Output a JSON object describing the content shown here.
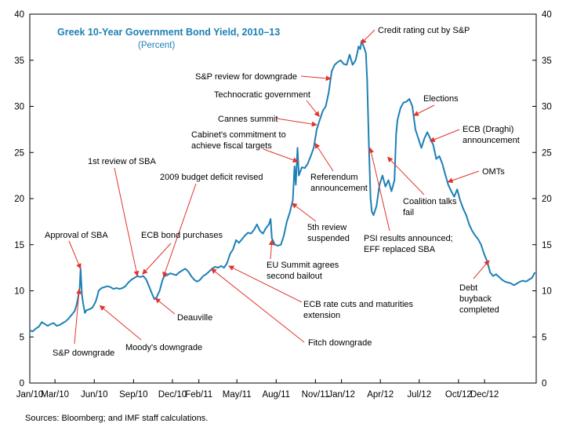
{
  "chart_data": {
    "type": "line",
    "title": "Greek 10-Year Government Bond Yield, 2010–13",
    "subtitle": "(Percent)",
    "source": "Sources: Bloomberg; and IMF staff calculations.",
    "colors": {
      "line": "#1d80b5",
      "title": "#1d80b5",
      "arrow": "#e0342c",
      "axis": "#000000"
    },
    "ylim": [
      0,
      40
    ],
    "y_ticks": [
      "0",
      "5",
      "10",
      "15",
      "20",
      "25",
      "30",
      "35",
      "40"
    ],
    "xlim": [
      "2010-01-01",
      "2013-04-01"
    ],
    "x_ticks": [
      {
        "label": "Jan/10",
        "date": "2010-01-01"
      },
      {
        "label": "Mar/10",
        "date": "2010-03-01"
      },
      {
        "label": "Jun/10",
        "date": "2010-06-01"
      },
      {
        "label": "Sep/10",
        "date": "2010-09-01"
      },
      {
        "label": "Dec/10",
        "date": "2010-12-01"
      },
      {
        "label": "Feb/11",
        "date": "2011-02-01"
      },
      {
        "label": "May/11",
        "date": "2011-05-01"
      },
      {
        "label": "Aug/11",
        "date": "2011-08-01"
      },
      {
        "label": "Nov/11",
        "date": "2011-11-01"
      },
      {
        "label": "Jan/12",
        "date": "2012-01-01"
      },
      {
        "label": "Apr/12",
        "date": "2012-04-01"
      },
      {
        "label": "Jul/12",
        "date": "2012-07-01"
      },
      {
        "label": "Oct/12",
        "date": "2012-10-01"
      },
      {
        "label": "Dec/12",
        "date": "2012-12-01"
      }
    ],
    "grid": false,
    "series": [
      {
        "points": [
          [
            "2010-01-01",
            5.7
          ],
          [
            "2010-01-08",
            5.6
          ],
          [
            "2010-01-15",
            5.9
          ],
          [
            "2010-01-22",
            6.1
          ],
          [
            "2010-01-29",
            6.6
          ],
          [
            "2010-02-05",
            6.4
          ],
          [
            "2010-02-12",
            6.2
          ],
          [
            "2010-02-19",
            6.4
          ],
          [
            "2010-02-26",
            6.5
          ],
          [
            "2010-03-05",
            6.2
          ],
          [
            "2010-03-12",
            6.3
          ],
          [
            "2010-03-19",
            6.5
          ],
          [
            "2010-03-26",
            6.7
          ],
          [
            "2010-04-02",
            7.0
          ],
          [
            "2010-04-09",
            7.4
          ],
          [
            "2010-04-16",
            7.8
          ],
          [
            "2010-04-20",
            8.4
          ],
          [
            "2010-04-23",
            9.0
          ],
          [
            "2010-04-26",
            9.8
          ],
          [
            "2010-04-28",
            10.4
          ],
          [
            "2010-04-30",
            12.4
          ],
          [
            "2010-05-03",
            9.6
          ],
          [
            "2010-05-06",
            8.6
          ],
          [
            "2010-05-10",
            7.6
          ],
          [
            "2010-05-14",
            7.9
          ],
          [
            "2010-05-21",
            8.0
          ],
          [
            "2010-05-28",
            8.2
          ],
          [
            "2010-06-04",
            8.8
          ],
          [
            "2010-06-08",
            9.4
          ],
          [
            "2010-06-11",
            10.0
          ],
          [
            "2010-06-18",
            10.3
          ],
          [
            "2010-06-25",
            10.4
          ],
          [
            "2010-07-02",
            10.5
          ],
          [
            "2010-07-09",
            10.4
          ],
          [
            "2010-07-16",
            10.2
          ],
          [
            "2010-07-23",
            10.3
          ],
          [
            "2010-07-30",
            10.2
          ],
          [
            "2010-08-06",
            10.3
          ],
          [
            "2010-08-13",
            10.5
          ],
          [
            "2010-08-20",
            10.9
          ],
          [
            "2010-08-27",
            11.2
          ],
          [
            "2010-09-03",
            11.4
          ],
          [
            "2010-09-10",
            11.6
          ],
          [
            "2010-09-17",
            11.5
          ],
          [
            "2010-09-24",
            11.6
          ],
          [
            "2010-10-01",
            11.2
          ],
          [
            "2010-10-08",
            10.4
          ],
          [
            "2010-10-15",
            9.6
          ],
          [
            "2010-10-20",
            9.1
          ],
          [
            "2010-10-25",
            9.3
          ],
          [
            "2010-11-01",
            10.0
          ],
          [
            "2010-11-08",
            11.2
          ],
          [
            "2010-11-12",
            11.6
          ],
          [
            "2010-11-19",
            11.7
          ],
          [
            "2010-11-26",
            11.9
          ],
          [
            "2010-12-03",
            11.8
          ],
          [
            "2010-12-10",
            11.7
          ],
          [
            "2010-12-17",
            12.0
          ],
          [
            "2010-12-24",
            12.2
          ],
          [
            "2010-12-31",
            12.4
          ],
          [
            "2011-01-07",
            12.1
          ],
          [
            "2011-01-14",
            11.6
          ],
          [
            "2011-01-21",
            11.2
          ],
          [
            "2011-01-28",
            11.0
          ],
          [
            "2011-02-04",
            11.2
          ],
          [
            "2011-02-11",
            11.6
          ],
          [
            "2011-02-18",
            11.8
          ],
          [
            "2011-02-25",
            12.1
          ],
          [
            "2011-03-04",
            12.4
          ],
          [
            "2011-03-11",
            12.6
          ],
          [
            "2011-03-18",
            12.5
          ],
          [
            "2011-03-25",
            12.7
          ],
          [
            "2011-04-01",
            12.5
          ],
          [
            "2011-04-08",
            13.0
          ],
          [
            "2011-04-15",
            14.0
          ],
          [
            "2011-04-22",
            14.5
          ],
          [
            "2011-04-29",
            15.5
          ],
          [
            "2011-05-06",
            15.2
          ],
          [
            "2011-05-13",
            15.6
          ],
          [
            "2011-05-20",
            16.0
          ],
          [
            "2011-05-27",
            16.3
          ],
          [
            "2011-06-03",
            16.2
          ],
          [
            "2011-06-10",
            16.6
          ],
          [
            "2011-06-17",
            17.2
          ],
          [
            "2011-06-24",
            16.5
          ],
          [
            "2011-07-01",
            16.2
          ],
          [
            "2011-07-08",
            16.8
          ],
          [
            "2011-07-15",
            17.2
          ],
          [
            "2011-07-19",
            17.8
          ],
          [
            "2011-07-22",
            15.7
          ],
          [
            "2011-07-29",
            15.0
          ],
          [
            "2011-08-05",
            14.9
          ],
          [
            "2011-08-12",
            15.0
          ],
          [
            "2011-08-19",
            16.0
          ],
          [
            "2011-08-26",
            17.5
          ],
          [
            "2011-09-02",
            18.5
          ],
          [
            "2011-09-09",
            19.8
          ],
          [
            "2011-09-13",
            23.5
          ],
          [
            "2011-09-16",
            21.5
          ],
          [
            "2011-09-20",
            25.5
          ],
          [
            "2011-09-23",
            22.5
          ],
          [
            "2011-09-30",
            23.4
          ],
          [
            "2011-10-07",
            23.3
          ],
          [
            "2011-10-14",
            23.8
          ],
          [
            "2011-10-21",
            24.6
          ],
          [
            "2011-10-28",
            25.5
          ],
          [
            "2011-11-04",
            27.5
          ],
          [
            "2011-11-11",
            28.5
          ],
          [
            "2011-11-18",
            29.5
          ],
          [
            "2011-11-25",
            30.0
          ],
          [
            "2011-12-02",
            31.5
          ],
          [
            "2011-12-09",
            33.8
          ],
          [
            "2011-12-16",
            34.5
          ],
          [
            "2011-12-23",
            34.8
          ],
          [
            "2011-12-30",
            35.0
          ],
          [
            "2012-01-06",
            34.6
          ],
          [
            "2012-01-13",
            34.5
          ],
          [
            "2012-01-20",
            35.6
          ],
          [
            "2012-01-27",
            34.5
          ],
          [
            "2012-02-03",
            35.0
          ],
          [
            "2012-02-08",
            36.0
          ],
          [
            "2012-02-10",
            36.5
          ],
          [
            "2012-02-14",
            36.2
          ],
          [
            "2012-02-17",
            37.1
          ],
          [
            "2012-02-22",
            36.5
          ],
          [
            "2012-02-27",
            35.8
          ],
          [
            "2012-03-01",
            33.0
          ],
          [
            "2012-03-05",
            26.0
          ],
          [
            "2012-03-09",
            20.0
          ],
          [
            "2012-03-12",
            18.6
          ],
          [
            "2012-03-16",
            18.2
          ],
          [
            "2012-03-23",
            19.2
          ],
          [
            "2012-03-30",
            21.5
          ],
          [
            "2012-04-06",
            22.5
          ],
          [
            "2012-04-13",
            21.3
          ],
          [
            "2012-04-20",
            22.0
          ],
          [
            "2012-04-27",
            20.8
          ],
          [
            "2012-05-04",
            22.0
          ],
          [
            "2012-05-08",
            27.0
          ],
          [
            "2012-05-11",
            28.5
          ],
          [
            "2012-05-18",
            29.8
          ],
          [
            "2012-05-25",
            30.4
          ],
          [
            "2012-06-01",
            30.5
          ],
          [
            "2012-06-08",
            30.8
          ],
          [
            "2012-06-15",
            30.0
          ],
          [
            "2012-06-22",
            27.5
          ],
          [
            "2012-06-29",
            26.5
          ],
          [
            "2012-07-06",
            25.5
          ],
          [
            "2012-07-13",
            26.5
          ],
          [
            "2012-07-20",
            27.2
          ],
          [
            "2012-07-27",
            26.5
          ],
          [
            "2012-08-03",
            25.8
          ],
          [
            "2012-08-10",
            24.3
          ],
          [
            "2012-08-17",
            24.6
          ],
          [
            "2012-08-24",
            23.8
          ],
          [
            "2012-08-31",
            22.6
          ],
          [
            "2012-09-07",
            21.5
          ],
          [
            "2012-09-14",
            20.8
          ],
          [
            "2012-09-21",
            20.2
          ],
          [
            "2012-09-28",
            21.0
          ],
          [
            "2012-10-05",
            19.8
          ],
          [
            "2012-10-12",
            18.9
          ],
          [
            "2012-10-19",
            18.2
          ],
          [
            "2012-10-26",
            17.2
          ],
          [
            "2012-11-02",
            16.5
          ],
          [
            "2012-11-09",
            16.0
          ],
          [
            "2012-11-16",
            15.6
          ],
          [
            "2012-11-23",
            15.0
          ],
          [
            "2012-11-30",
            14.0
          ],
          [
            "2012-12-07",
            13.2
          ],
          [
            "2012-12-14",
            12.0
          ],
          [
            "2012-12-21",
            11.6
          ],
          [
            "2012-12-28",
            11.8
          ],
          [
            "2013-01-04",
            11.5
          ],
          [
            "2013-01-11",
            11.2
          ],
          [
            "2013-01-18",
            11.0
          ],
          [
            "2013-01-25",
            10.9
          ],
          [
            "2013-02-01",
            10.8
          ],
          [
            "2013-02-08",
            10.6
          ],
          [
            "2013-02-15",
            10.8
          ],
          [
            "2013-02-22",
            11.0
          ],
          [
            "2013-03-01",
            11.1
          ],
          [
            "2013-03-08",
            11.0
          ],
          [
            "2013-03-15",
            11.2
          ],
          [
            "2013-03-22",
            11.4
          ],
          [
            "2013-03-29",
            12.0
          ]
        ]
      }
    ],
    "annotations": [
      {
        "id": "approval-of-sba",
        "text": [
          "Approval of SBA"
        ],
        "x": "2010-04-30",
        "y": 12.4
      },
      {
        "id": "sp-downgrade",
        "text": [
          "S&P downgrade"
        ],
        "x": "2010-04-27",
        "y": 10.2
      },
      {
        "id": "moodys-downgrade",
        "text": [
          "Moody's downgrade"
        ],
        "x": "2010-06-14",
        "y": 8.4
      },
      {
        "id": "first-review-of-sba",
        "text": [
          "1st review of SBA"
        ],
        "x": "2010-09-10",
        "y": 11.6
      },
      {
        "id": "ecb-bond-purchases",
        "text": [
          "ECB bond purchases"
        ],
        "x": "2010-09-22",
        "y": 11.8
      },
      {
        "id": "budget-deficit-revised",
        "text": [
          "2009 budget deficit revised"
        ],
        "x": "2010-11-10",
        "y": 11.5
      },
      {
        "id": "deauville",
        "text": [
          "Deauville"
        ],
        "x": "2010-10-22",
        "y": 9.2
      },
      {
        "id": "ecb-rate-cuts",
        "text": [
          "ECB rate cuts and maturities",
          "extension"
        ],
        "x": "2011-04-12",
        "y": 12.7
      },
      {
        "id": "fitch-downgrade",
        "text": [
          "Fitch downgrade"
        ],
        "x": "2011-03-02",
        "y": 12.4
      },
      {
        "id": "eu-summit",
        "text": [
          "EU Summit agrees",
          "second bailout"
        ],
        "x": "2011-07-22",
        "y": 15.5
      },
      {
        "id": "fifth-review-suspended",
        "text": [
          "5th review",
          "suspended"
        ],
        "x": "2011-09-07",
        "y": 19.5
      },
      {
        "id": "cabinet-commitment",
        "text": [
          "Cabinet's commitment to",
          "achieve fiscal targets"
        ],
        "x": "2011-09-21",
        "y": 24.0
      },
      {
        "id": "cannes-summit",
        "text": [
          "Cannes summit"
        ],
        "x": "2011-11-04",
        "y": 28.0
      },
      {
        "id": "technocratic-government",
        "text": [
          "Technocratic government"
        ],
        "x": "2011-11-10",
        "y": 28.9
      },
      {
        "id": "referendum-announcement",
        "text": [
          "Referendum",
          "announcement"
        ],
        "x": "2011-10-31",
        "y": 26.0
      },
      {
        "id": "sp-review-for-downgrade",
        "text": [
          "S&P review for downgrade"
        ],
        "x": "2011-12-07",
        "y": 33.0
      },
      {
        "id": "credit-rating-cut",
        "text": [
          "Credit rating cut by S&P"
        ],
        "x": "2012-02-16",
        "y": 36.8
      },
      {
        "id": "psi-results",
        "text": [
          "PSI results announced;",
          "EFF replaced SBA"
        ],
        "x": "2012-03-08",
        "y": 25.5
      },
      {
        "id": "coalition-talks-fail",
        "text": [
          "Coalition talks",
          "fail"
        ],
        "x": "2012-04-18",
        "y": 24.5
      },
      {
        "id": "elections",
        "text": [
          "Elections"
        ],
        "x": "2012-06-18",
        "y": 29.0
      },
      {
        "id": "ecb-draghi",
        "text": [
          "ECB (Draghi)",
          "announcement"
        ],
        "x": "2012-07-26",
        "y": 26.2
      },
      {
        "id": "omts",
        "text": [
          "OMTs"
        ],
        "x": "2012-09-06",
        "y": 21.8
      },
      {
        "id": "debt-buyback",
        "text": [
          "Debt",
          "buyback",
          "completed"
        ],
        "x": "2012-12-12",
        "y": 13.3
      }
    ]
  }
}
